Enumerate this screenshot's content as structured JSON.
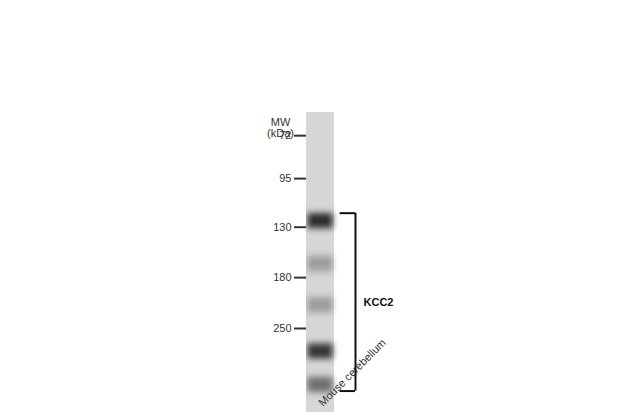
{
  "chart_data": {
    "type": "blot",
    "lane_label": "Mouse cerebellum",
    "ylabel": "MW\n(kDa)",
    "log": "y",
    "ylim": [
      430,
      62
    ],
    "yticks": [
      250,
      180,
      130,
      95,
      72
    ],
    "tick_labels": "y",
    "bands": [
      {
        "mw": 360,
        "intensity": 0.55
      },
      {
        "mw": 290,
        "intensity": 0.85
      },
      {
        "mw": 215,
        "intensity": 0.3
      },
      {
        "mw": 165,
        "intensity": 0.3
      },
      {
        "mw": 125,
        "intensity": 0.9
      }
    ],
    "annotation": "KCC2"
  }
}
